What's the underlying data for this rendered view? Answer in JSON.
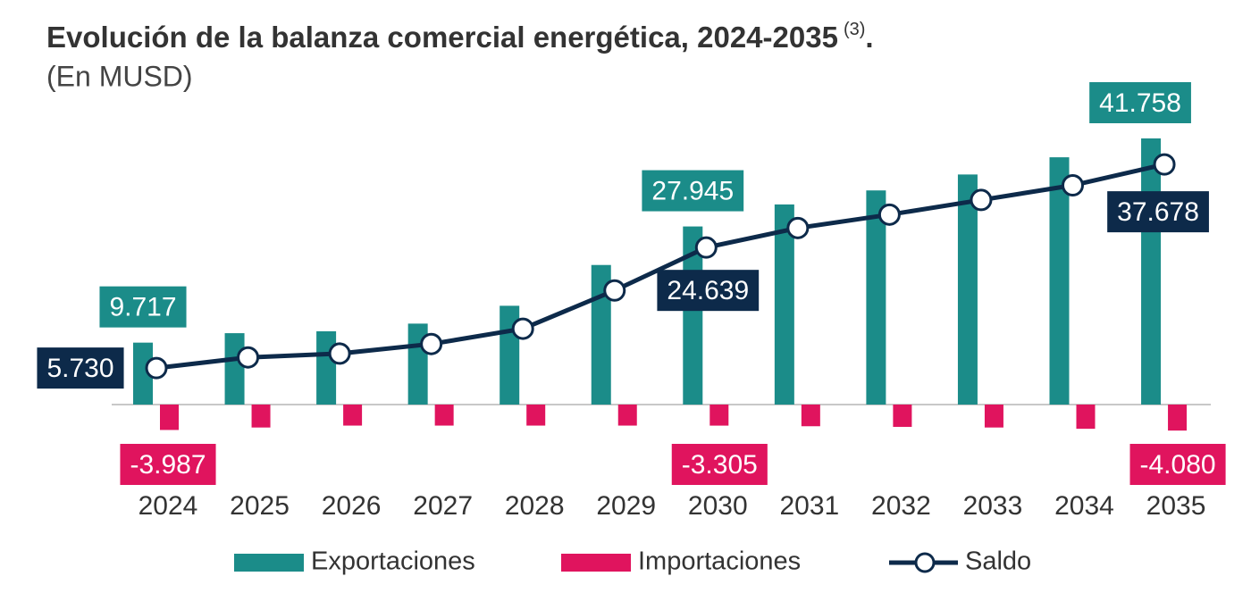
{
  "chart_data": {
    "type": "bar-line",
    "title": "Evolución de la balanza comercial energética, 2024-2035",
    "title_note": "(3)",
    "title_end": ".",
    "subtitle": "(En MUSD)",
    "categories": [
      "2024",
      "2025",
      "2026",
      "2027",
      "2028",
      "2029",
      "2030",
      "2031",
      "2032",
      "2033",
      "2034",
      "2035"
    ],
    "series": [
      {
        "name": "Exportaciones",
        "type": "bar",
        "color": "#1b8c89",
        "values": [
          9717,
          11200,
          11500,
          12700,
          15500,
          21900,
          27945,
          31400,
          33600,
          36100,
          38800,
          41758
        ],
        "value_labels": [
          "9.717",
          null,
          null,
          null,
          null,
          null,
          "27.945",
          null,
          null,
          null,
          null,
          "41.758"
        ]
      },
      {
        "name": "Importaciones",
        "type": "bar",
        "color": "#e0145e",
        "values": [
          -3987,
          -3600,
          -3300,
          -3300,
          -3300,
          -3300,
          -3305,
          -3400,
          -3500,
          -3600,
          -3800,
          -4080
        ],
        "value_labels": [
          "-3.987",
          null,
          null,
          null,
          null,
          null,
          "-3.305",
          null,
          null,
          null,
          null,
          "-4.080"
        ]
      },
      {
        "name": "Saldo",
        "type": "line",
        "color": "#0d2a4a",
        "values": [
          5730,
          7400,
          8000,
          9500,
          11900,
          17900,
          24639,
          27700,
          29800,
          32100,
          34400,
          37678
        ],
        "value_labels": [
          "5.730",
          null,
          null,
          null,
          null,
          null,
          "24.639",
          null,
          null,
          null,
          null,
          "37.678"
        ]
      }
    ]
  }
}
